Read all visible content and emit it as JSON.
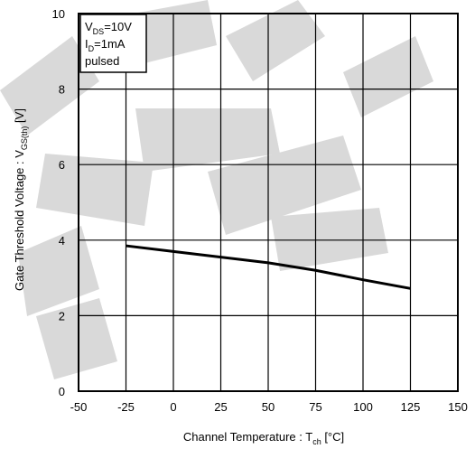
{
  "chart_data": {
    "type": "line",
    "title": "",
    "xlabel": {
      "prefix": "Channel Temperature :  T",
      "sub": "ch",
      "suffix": " [°C]"
    },
    "ylabel": {
      "prefix": "Gate Threshold Voltage :  V",
      "sub": "GS(th)",
      "suffix": " [V]"
    },
    "xlim": [
      -50,
      150
    ],
    "ylim": [
      0,
      10
    ],
    "xticks": [
      -50,
      -25,
      0,
      25,
      50,
      75,
      100,
      125,
      150
    ],
    "yticks": [
      0,
      2,
      4,
      6,
      8,
      10
    ],
    "grid": true,
    "conditions": [
      {
        "main": "V",
        "sub": "DS",
        "rest": "=10V"
      },
      {
        "main": "I",
        "sub": "D",
        "rest": "=1mA"
      },
      {
        "main": "pulsed",
        "sub": "",
        "rest": ""
      }
    ],
    "series": [
      {
        "x": [
          -25,
          0,
          25,
          50,
          75,
          100,
          125
        ],
        "y": [
          3.85,
          3.7,
          3.55,
          3.4,
          3.2,
          2.95,
          2.72
        ]
      }
    ],
    "colors": {
      "line": "#000000",
      "grid": "#000000",
      "watermark": "#d9d9d9"
    }
  }
}
